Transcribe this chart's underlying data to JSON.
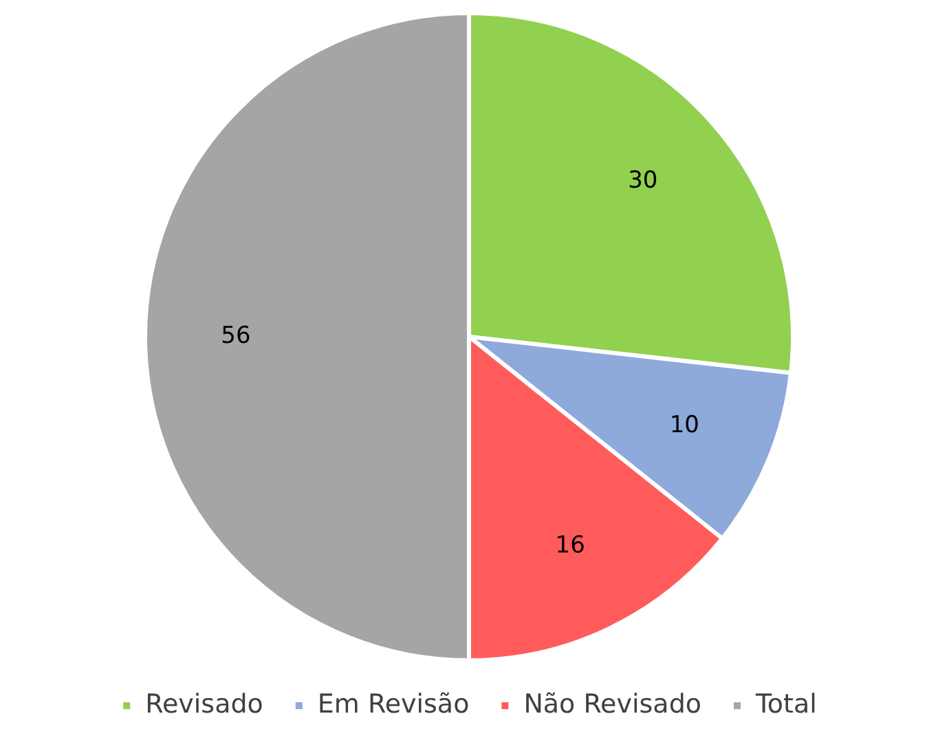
{
  "chart_data": {
    "type": "pie",
    "categories": [
      "Revisado",
      "Em Revisão",
      "Não Revisado",
      "Total"
    ],
    "values": [
      30,
      10,
      16,
      56
    ],
    "colors": [
      "#92d050",
      "#8eaadb",
      "#ff5b5b",
      "#a5a5a5"
    ],
    "data_labels": true,
    "legend": "bottom"
  }
}
